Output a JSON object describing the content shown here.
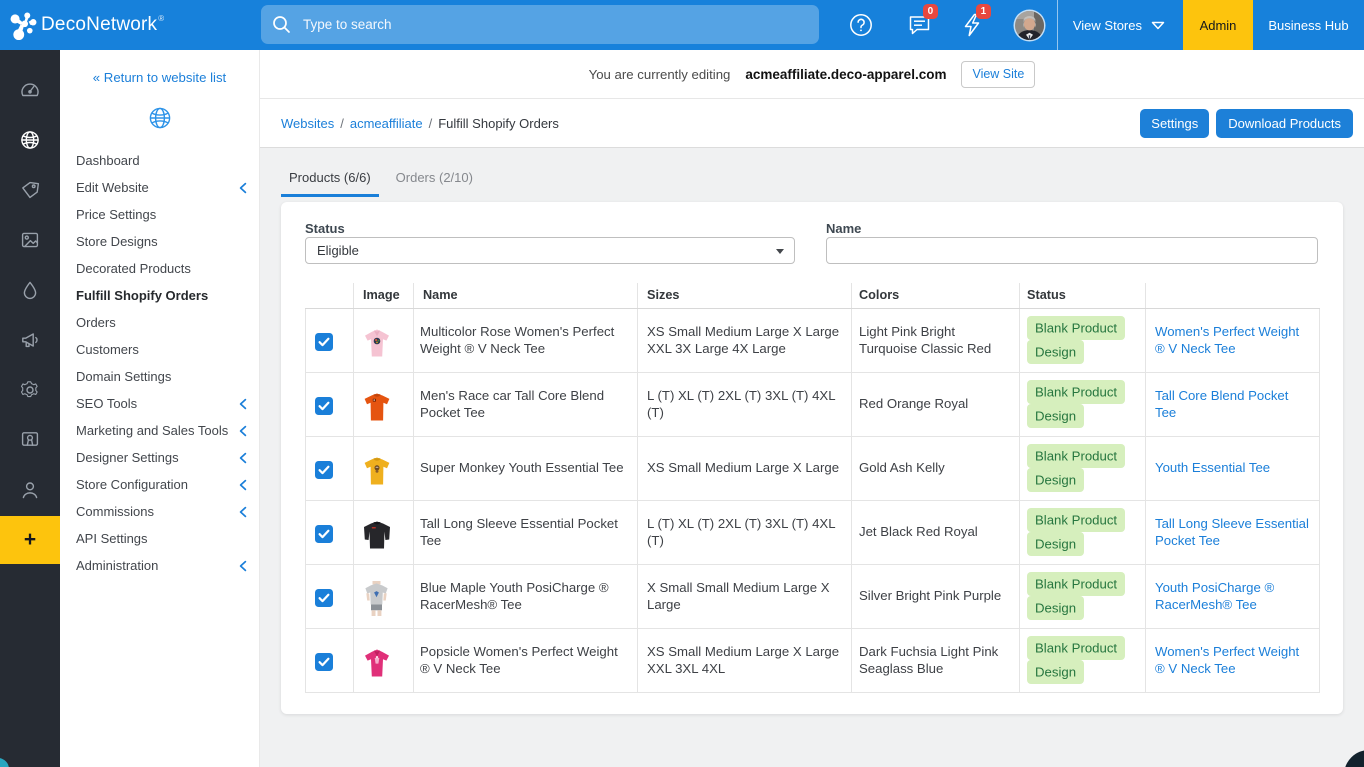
{
  "header": {
    "brand": "DecoNetwork",
    "brand_reg": "®",
    "search_placeholder": "Type to search",
    "messages_badge": "0",
    "alerts_badge": "1",
    "view_stores_label": "View Stores",
    "admin_label": "Admin",
    "business_hub_label": "Business Hub"
  },
  "rail": {
    "icons": [
      "dashboard",
      "websites",
      "pricing",
      "artwork",
      "production",
      "marketing",
      "settings",
      "store-designs",
      "customers"
    ],
    "add_label": "+"
  },
  "sidebar": {
    "return_link": "« Return to website list",
    "items": [
      {
        "label": "Dashboard",
        "expandable": false,
        "active": false
      },
      {
        "label": "Edit Website",
        "expandable": true,
        "active": false
      },
      {
        "label": "Price Settings",
        "expandable": false,
        "active": false
      },
      {
        "label": "Store Designs",
        "expandable": false,
        "active": false
      },
      {
        "label": "Decorated Products",
        "expandable": false,
        "active": false
      },
      {
        "label": "Fulfill Shopify Orders",
        "expandable": false,
        "active": true
      },
      {
        "label": "Orders",
        "expandable": false,
        "active": false
      },
      {
        "label": "Customers",
        "expandable": false,
        "active": false
      },
      {
        "label": "Domain Settings",
        "expandable": false,
        "active": false
      },
      {
        "label": "SEO Tools",
        "expandable": true,
        "active": false
      },
      {
        "label": "Marketing and Sales Tools",
        "expandable": true,
        "active": false
      },
      {
        "label": "Designer Settings",
        "expandable": true,
        "active": false
      },
      {
        "label": "Store Configuration",
        "expandable": true,
        "active": false
      },
      {
        "label": "Commissions",
        "expandable": true,
        "active": false
      },
      {
        "label": "API Settings",
        "expandable": false,
        "active": false
      },
      {
        "label": "Administration",
        "expandable": true,
        "active": false
      }
    ]
  },
  "editing_bar": {
    "prefix": "You are currently editing",
    "domain": "acmeaffiliate.deco-apparel.com",
    "view_site_label": "View Site"
  },
  "breadcrumb": {
    "links": [
      "Websites",
      "acmeaffiliate"
    ],
    "current": "Fulfill Shopify Orders",
    "separator": "/"
  },
  "actions": {
    "settings_label": "Settings",
    "download_label": "Download Products"
  },
  "tabs": [
    {
      "label": "Products (6/6)",
      "active": true
    },
    {
      "label": "Orders (2/10)",
      "active": false
    }
  ],
  "filters": {
    "status_label": "Status",
    "status_value": "Eligible",
    "name_label": "Name",
    "name_value": ""
  },
  "table": {
    "columns": [
      "",
      "Image",
      "Name",
      "Sizes",
      "Colors",
      "Status",
      ""
    ],
    "rows": [
      {
        "checked": true,
        "thumb": "womens-vneck-pink",
        "name": "Multicolor Rose Women's Perfect Weight ® V Neck Tee",
        "sizes": "XS Small Medium Large X Large XXL 3X Large 4X Large",
        "colors": "Light Pink Bright Turquoise Classic Red",
        "status": "Blank Product Design",
        "link": "Women's Perfect Weight ® V Neck Tee"
      },
      {
        "checked": true,
        "thumb": "mens-tee-orange",
        "name": "Men's Race car Tall Core Blend Pocket Tee",
        "sizes": "L (T) XL (T) 2XL (T) 3XL (T) 4XL (T)",
        "colors": "Red Orange Royal",
        "status": "Blank Product Design",
        "link": "Tall Core Blend Pocket Tee"
      },
      {
        "checked": true,
        "thumb": "youth-tee-gold",
        "name": "Super Monkey Youth Essential Tee",
        "sizes": "XS Small Medium Large X Large",
        "colors": "Gold Ash Kelly",
        "status": "Blank Product Design",
        "link": "Youth Essential Tee"
      },
      {
        "checked": true,
        "thumb": "longsleeve-black",
        "name": "Tall Long Sleeve Essential Pocket Tee",
        "sizes": "L (T) XL (T) 2XL (T) 3XL (T) 4XL (T)",
        "colors": "Jet Black Red Royal",
        "status": "Blank Product Design",
        "link": "Tall Long Sleeve Essential Pocket Tee"
      },
      {
        "checked": true,
        "thumb": "model-tee-gray",
        "name": "Blue Maple Youth PosiCharge ® RacerMesh® Tee",
        "sizes": "X Small Small Medium Large X Large",
        "colors": "Silver Bright Pink Purple",
        "status": "Blank Product Design",
        "link": "Youth PosiCharge ® RacerMesh® Tee"
      },
      {
        "checked": true,
        "thumb": "womens-tee-pink",
        "name": "Popsicle Women's Perfect Weight ® V Neck Tee",
        "sizes": "XS Small Medium Large X Large XXL 3XL 4XL",
        "colors": "Dark Fuchsia Light Pink Seaglass Blue",
        "status": "Blank Product Design",
        "link": "Women's Perfect Weight ® V Neck Tee"
      }
    ]
  },
  "colors": {
    "header_blue": "#1781db",
    "accent_blue": "#1b7fd9",
    "admin_yellow": "#fdc40d",
    "rail_dark": "#262b33",
    "badge_red": "#e8483f",
    "status_green_bg": "#d6efbd",
    "status_green_text": "#26763f"
  }
}
